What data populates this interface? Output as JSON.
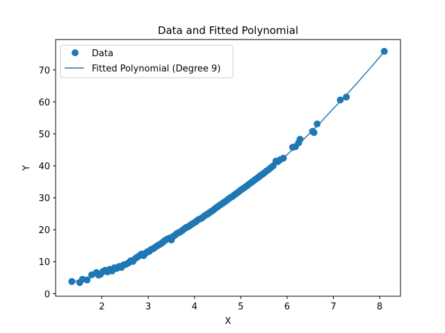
{
  "chart_data": {
    "type": "scatter",
    "title": "Data and Fitted Polynomial",
    "xlabel": "X",
    "ylabel": "Y",
    "xlim": [
      1.0,
      8.45
    ],
    "ylim": [
      -0.8,
      79.5
    ],
    "xticks": [
      2,
      3,
      4,
      5,
      6,
      7,
      8
    ],
    "yticks": [
      0,
      10,
      20,
      30,
      40,
      50,
      60,
      70
    ],
    "grid": false,
    "legend_position": "top-left",
    "colors": {
      "series": "#1f77b4",
      "axis": "#000000",
      "background": "#ffffff"
    },
    "series": [
      {
        "name": "Data",
        "kind": "scatter",
        "points": [
          [
            1.35,
            3.8
          ],
          [
            1.52,
            3.5
          ],
          [
            1.58,
            4.5
          ],
          [
            1.68,
            4.3
          ],
          [
            1.78,
            5.9
          ],
          [
            1.88,
            6.6
          ],
          [
            1.93,
            5.8
          ],
          [
            1.97,
            6.1
          ],
          [
            2.02,
            6.9
          ],
          [
            2.07,
            7.3
          ],
          [
            2.12,
            6.8
          ],
          [
            2.17,
            7.6
          ],
          [
            2.22,
            7.1
          ],
          [
            2.27,
            8.1
          ],
          [
            2.32,
            7.9
          ],
          [
            2.37,
            8.5
          ],
          [
            2.42,
            8.2
          ],
          [
            2.47,
            9.0
          ],
          [
            2.52,
            9.2
          ],
          [
            2.57,
            9.6
          ],
          [
            2.62,
            10.3
          ],
          [
            2.67,
            10.1
          ],
          [
            2.72,
            11.0
          ],
          [
            2.77,
            11.5
          ],
          [
            2.82,
            12.0
          ],
          [
            2.86,
            12.4
          ],
          [
            2.9,
            11.9
          ],
          [
            2.94,
            12.6
          ],
          [
            2.98,
            13.1
          ],
          [
            3.02,
            13.2
          ],
          [
            3.06,
            13.8
          ],
          [
            3.1,
            14.0
          ],
          [
            3.14,
            14.4
          ],
          [
            3.18,
            14.8
          ],
          [
            3.22,
            15.2
          ],
          [
            3.26,
            15.5
          ],
          [
            3.3,
            15.9
          ],
          [
            3.34,
            16.4
          ],
          [
            3.38,
            16.8
          ],
          [
            3.42,
            17.1
          ],
          [
            3.46,
            17.4
          ],
          [
            3.5,
            16.8
          ],
          [
            3.54,
            17.9
          ],
          [
            3.58,
            18.3
          ],
          [
            3.62,
            18.8
          ],
          [
            3.66,
            19.1
          ],
          [
            3.7,
            19.4
          ],
          [
            3.74,
            19.8
          ],
          [
            3.78,
            20.3
          ],
          [
            3.82,
            20.7
          ],
          [
            3.86,
            20.9
          ],
          [
            3.9,
            21.3
          ],
          [
            3.94,
            21.7
          ],
          [
            3.98,
            22.1
          ],
          [
            4.02,
            22.4
          ],
          [
            4.06,
            22.9
          ],
          [
            4.1,
            23.3
          ],
          [
            4.14,
            23.5
          ],
          [
            4.18,
            23.9
          ],
          [
            4.22,
            24.4
          ],
          [
            4.26,
            24.7
          ],
          [
            4.3,
            25.1
          ],
          [
            4.34,
            25.5
          ],
          [
            4.38,
            25.9
          ],
          [
            4.42,
            26.3
          ],
          [
            4.46,
            26.8
          ],
          [
            4.5,
            27.2
          ],
          [
            4.54,
            27.6
          ],
          [
            4.58,
            28.0
          ],
          [
            4.62,
            28.4
          ],
          [
            4.66,
            28.8
          ],
          [
            4.7,
            29.2
          ],
          [
            4.74,
            29.7
          ],
          [
            4.78,
            30.1
          ],
          [
            4.82,
            30.4
          ],
          [
            4.86,
            30.9
          ],
          [
            4.9,
            31.3
          ],
          [
            4.94,
            31.7
          ],
          [
            4.98,
            32.2
          ],
          [
            5.02,
            32.6
          ],
          [
            5.06,
            33.0
          ],
          [
            5.1,
            33.4
          ],
          [
            5.14,
            33.8
          ],
          [
            5.18,
            34.3
          ],
          [
            5.22,
            34.7
          ],
          [
            5.26,
            35.1
          ],
          [
            5.3,
            35.6
          ],
          [
            5.34,
            36.0
          ],
          [
            5.38,
            36.4
          ],
          [
            5.42,
            36.9
          ],
          [
            5.46,
            37.3
          ],
          [
            5.5,
            37.7
          ],
          [
            5.55,
            38.3
          ],
          [
            5.6,
            38.8
          ],
          [
            5.65,
            39.4
          ],
          [
            5.7,
            40.0
          ],
          [
            5.76,
            41.5
          ],
          [
            5.8,
            41.3
          ],
          [
            5.85,
            41.9
          ],
          [
            5.92,
            42.4
          ],
          [
            6.12,
            45.8
          ],
          [
            6.18,
            46.0
          ],
          [
            6.25,
            47.2
          ],
          [
            6.28,
            48.3
          ],
          [
            6.55,
            50.8
          ],
          [
            6.58,
            50.4
          ],
          [
            6.65,
            53.1
          ],
          [
            7.15,
            60.6
          ],
          [
            7.28,
            61.5
          ],
          [
            8.1,
            75.8
          ]
        ]
      },
      {
        "name": "Fitted Polynomial (Degree 9)",
        "kind": "line",
        "points": [
          [
            1.35,
            3.6
          ],
          [
            1.6,
            4.4
          ],
          [
            1.8,
            5.3
          ],
          [
            2.0,
            6.5
          ],
          [
            2.25,
            7.8
          ],
          [
            2.5,
            9.3
          ],
          [
            2.75,
            11.0
          ],
          [
            3.0,
            13.0
          ],
          [
            3.25,
            15.0
          ],
          [
            3.5,
            17.2
          ],
          [
            3.75,
            19.6
          ],
          [
            4.0,
            22.1
          ],
          [
            4.25,
            24.6
          ],
          [
            4.5,
            27.2
          ],
          [
            4.75,
            29.9
          ],
          [
            5.0,
            32.5
          ],
          [
            5.25,
            35.1
          ],
          [
            5.5,
            37.8
          ],
          [
            5.75,
            40.6
          ],
          [
            6.0,
            43.5
          ],
          [
            6.25,
            46.8
          ],
          [
            6.5,
            50.3
          ],
          [
            6.75,
            54.0
          ],
          [
            7.0,
            57.9
          ],
          [
            7.25,
            61.7
          ],
          [
            7.5,
            65.7
          ],
          [
            7.75,
            69.8
          ],
          [
            8.0,
            74.0
          ],
          [
            8.1,
            75.8
          ]
        ]
      }
    ]
  }
}
